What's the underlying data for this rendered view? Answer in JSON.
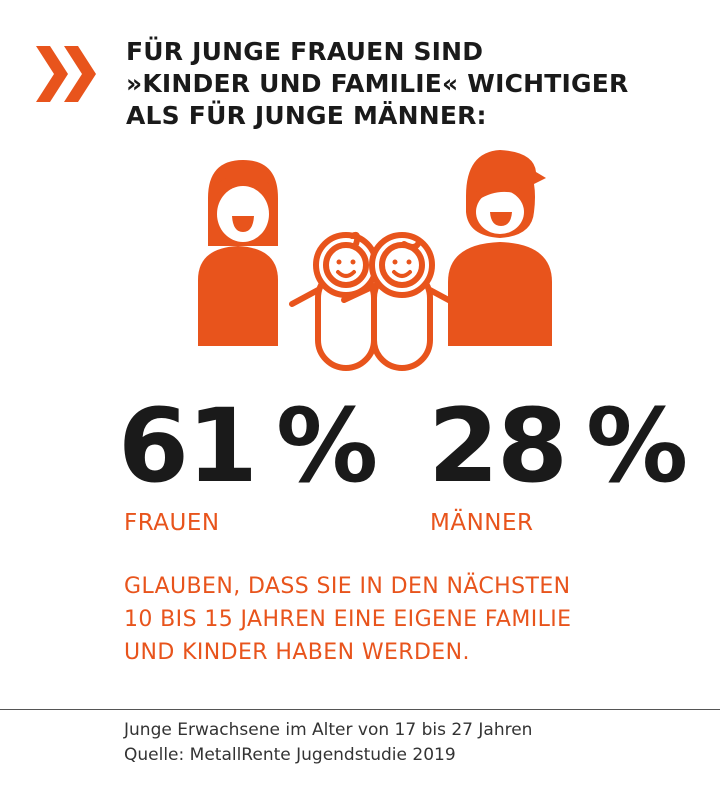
{
  "colors": {
    "accent": "#e8541c",
    "text": "#1a1a1a",
    "divider": "#555555"
  },
  "icons": {
    "marker": "double-chevron-right-icon",
    "illustration": "family-icon"
  },
  "headline": {
    "lines": [
      "FÜR JUNGE FRAUEN SIND",
      "»KINDER UND FAMILIE« WICHTIGER",
      "ALS FÜR JUNGE MÄNNER:"
    ]
  },
  "stats": {
    "women": {
      "value": "61",
      "unit": "%",
      "label": "FRAUEN"
    },
    "men": {
      "value": "28",
      "unit": "%",
      "label": "MÄNNER"
    }
  },
  "statement": {
    "lines": [
      "GLAUBEN, DASS SIE IN DEN NÄCHSTEN",
      "10 BIS 15 JAHREN EINE EIGENE FAMILIE",
      "UND KINDER HABEN WERDEN."
    ]
  },
  "footnote": {
    "lines": [
      "Junge Erwachsene im Alter von 17 bis 27 Jahren",
      "Quelle: MetallRente Jugendstudie 2019"
    ]
  }
}
